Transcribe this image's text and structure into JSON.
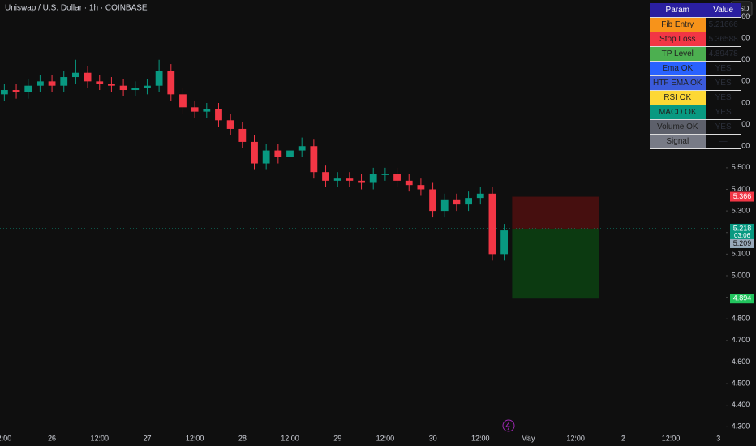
{
  "header": {
    "title": "Uniswap / U.S. Dollar · 1h · COINBASE",
    "currency": "USD"
  },
  "chart_data": {
    "type": "candlestick",
    "x": [
      -12,
      -9,
      -6,
      -3,
      0,
      3,
      6,
      9,
      12,
      15,
      18,
      21,
      24,
      27,
      30,
      33,
      36,
      39,
      42,
      45,
      48,
      51,
      54,
      57,
      60,
      63,
      66,
      69,
      72,
      75,
      78,
      81,
      84,
      87,
      90,
      93,
      96,
      99,
      102,
      105,
      108,
      111,
      114
    ],
    "open": [
      5.84,
      5.86,
      5.85,
      5.88,
      5.9,
      5.88,
      5.92,
      5.94,
      5.9,
      5.89,
      5.88,
      5.86,
      5.87,
      5.88,
      5.95,
      5.84,
      5.78,
      5.76,
      5.77,
      5.72,
      5.68,
      5.62,
      5.52,
      5.58,
      5.55,
      5.58,
      5.6,
      5.48,
      5.44,
      5.45,
      5.44,
      5.43,
      5.47,
      5.47,
      5.44,
      5.42,
      5.4,
      5.3,
      5.35,
      5.33,
      5.36,
      5.38,
      5.1
    ],
    "high": [
      5.89,
      5.89,
      5.91,
      5.93,
      5.93,
      5.95,
      6.0,
      5.97,
      5.93,
      5.92,
      5.91,
      5.9,
      5.91,
      6.0,
      5.98,
      5.87,
      5.81,
      5.8,
      5.8,
      5.75,
      5.71,
      5.65,
      5.61,
      5.61,
      5.61,
      5.64,
      5.63,
      5.51,
      5.48,
      5.48,
      5.47,
      5.5,
      5.5,
      5.5,
      5.47,
      5.45,
      5.43,
      5.38,
      5.38,
      5.39,
      5.41,
      5.41,
      5.24
    ],
    "low": [
      5.81,
      5.82,
      5.82,
      5.85,
      5.85,
      5.85,
      5.89,
      5.87,
      5.86,
      5.85,
      5.83,
      5.83,
      5.84,
      5.85,
      5.81,
      5.75,
      5.73,
      5.73,
      5.69,
      5.65,
      5.59,
      5.49,
      5.49,
      5.52,
      5.52,
      5.55,
      5.45,
      5.41,
      5.41,
      5.41,
      5.4,
      5.4,
      5.44,
      5.41,
      5.39,
      5.37,
      5.27,
      5.27,
      5.3,
      5.3,
      5.33,
      5.07,
      5.07
    ],
    "close": [
      5.86,
      5.85,
      5.88,
      5.9,
      5.88,
      5.92,
      5.94,
      5.9,
      5.89,
      5.88,
      5.86,
      5.87,
      5.88,
      5.95,
      5.84,
      5.78,
      5.76,
      5.77,
      5.72,
      5.68,
      5.62,
      5.52,
      5.58,
      5.55,
      5.58,
      5.6,
      5.48,
      5.44,
      5.45,
      5.44,
      5.43,
      5.47,
      5.47,
      5.44,
      5.42,
      5.4,
      5.3,
      5.35,
      5.33,
      5.36,
      5.38,
      5.1,
      5.21
    ],
    "up_color": "#089981",
    "down_color": "#f23645",
    "xlim": [
      -13.1,
      169.9
    ],
    "xticks": [
      {
        "value": -12,
        "label": "2:00"
      },
      {
        "value": 0,
        "label": "26"
      },
      {
        "value": 12,
        "label": "12:00"
      },
      {
        "value": 24,
        "label": "27"
      },
      {
        "value": 36,
        "label": "12:00"
      },
      {
        "value": 48,
        "label": "28"
      },
      {
        "value": 60,
        "label": "12:00"
      },
      {
        "value": 72,
        "label": "29"
      },
      {
        "value": 84,
        "label": "12:00"
      },
      {
        "value": 96,
        "label": "30"
      },
      {
        "value": 108,
        "label": "12:00"
      },
      {
        "value": 120,
        "label": "May"
      },
      {
        "value": 132,
        "label": "12:00"
      },
      {
        "value": 144,
        "label": "2"
      },
      {
        "value": 156,
        "label": "12:00"
      },
      {
        "value": 168,
        "label": "3"
      }
    ],
    "ylim": [
      4.26,
      6.277
    ],
    "yticks": [
      {
        "value": 4.3,
        "label": "4.300"
      },
      {
        "value": 4.4,
        "label": "4.400"
      },
      {
        "value": 4.5,
        "label": "4.500"
      },
      {
        "value": 4.6,
        "label": "4.600"
      },
      {
        "value": 4.7,
        "label": "4.700"
      },
      {
        "value": 4.8,
        "label": "4.800"
      },
      {
        "value": 4.9,
        "label": "4.900"
      },
      {
        "value": 5.0,
        "label": "5.000"
      },
      {
        "value": 5.1,
        "label": "5.100"
      },
      {
        "value": 5.2,
        "label": "5.200"
      },
      {
        "value": 5.3,
        "label": "5.300"
      },
      {
        "value": 5.4,
        "label": "5.400"
      },
      {
        "value": 5.5,
        "label": "5.500"
      },
      {
        "value": 5.6,
        "label": "5.600"
      },
      {
        "value": 5.7,
        "label": "5.700"
      },
      {
        "value": 5.8,
        "label": "5.800"
      },
      {
        "value": 5.9,
        "label": "5.900"
      },
      {
        "value": 6.0,
        "label": "6.000"
      },
      {
        "value": 6.1,
        "label": "6.100"
      },
      {
        "value": 6.2,
        "label": "6.200"
      }
    ],
    "position": {
      "stop": 5.366,
      "entry": 5.218,
      "target": 4.894,
      "start": 116,
      "end": 138,
      "stop_color": "#f23645",
      "entry_color": "#089981",
      "target_color": "#22c55e"
    },
    "last_price": {
      "value": 5.209,
      "countdown": "03:06"
    }
  },
  "table": {
    "header": [
      "Param",
      "Value"
    ],
    "rows": [
      [
        "Fib Entry",
        5.21666
      ],
      [
        "Stop Loss",
        5.36588
      ],
      [
        "TP Level",
        4.89478
      ],
      [
        "Ema OK",
        "YES"
      ],
      [
        "HTF EMA OK",
        "YES"
      ],
      [
        "RSI OK",
        "YES"
      ],
      [
        "MACD OK",
        "YES"
      ],
      [
        "Volume OK",
        "YES"
      ],
      [
        "Signal",
        "—"
      ]
    ],
    "colors": [
      "#f7931a",
      "#f23645",
      "#4caf50",
      "#2962ff",
      "#3b5bdb",
      "#fdd835",
      "#089981",
      "#5d606b",
      "#787b86"
    ]
  }
}
